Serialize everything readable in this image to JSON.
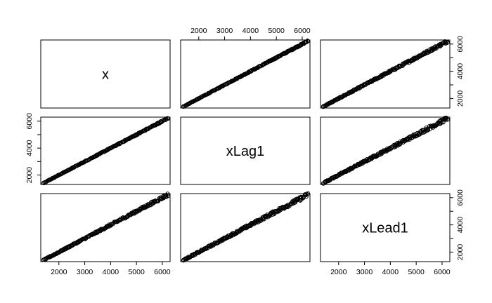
{
  "chart_data": {
    "type": "scatter",
    "variables": [
      "x",
      "xLag1",
      "xLead1"
    ],
    "axis_range": [
      1300,
      6300
    ],
    "ticks": [
      2000,
      3000,
      4000,
      5000,
      6000
    ],
    "tick_labels": [
      "2000",
      "3000",
      "4000",
      "5000",
      "6000"
    ],
    "grid": false,
    "panels": [
      {
        "row": 0,
        "col": 1,
        "x": "xLag1",
        "y": "x",
        "relation": "x ≈ xLag1",
        "spread": "narrow"
      },
      {
        "row": 0,
        "col": 2,
        "x": "xLead1",
        "y": "x",
        "relation": "x ≈ xLead1",
        "spread": "moderate"
      },
      {
        "row": 1,
        "col": 0,
        "x": "x",
        "y": "xLag1",
        "relation": "xLag1 ≈ x",
        "spread": "narrow"
      },
      {
        "row": 1,
        "col": 2,
        "x": "xLead1",
        "y": "xLag1",
        "relation": "xLag1 ≈ xLead1",
        "spread": "wider"
      },
      {
        "row": 2,
        "col": 0,
        "x": "x",
        "y": "xLead1",
        "relation": "xLead1 ≈ x",
        "spread": "moderate"
      },
      {
        "row": 2,
        "col": 1,
        "x": "xLag1",
        "y": "xLead1",
        "relation": "xLead1 ≈ xLag1",
        "spread": "wider"
      }
    ],
    "approx_range_of_values": [
      1400,
      6200
    ]
  }
}
